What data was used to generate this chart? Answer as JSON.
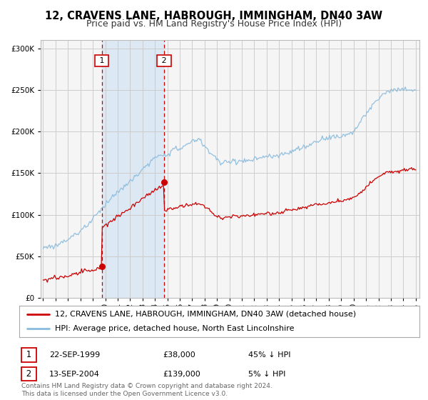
{
  "title": "12, CRAVENS LANE, HABROUGH, IMMINGHAM, DN40 3AW",
  "subtitle": "Price paid vs. HM Land Registry's House Price Index (HPI)",
  "red_label": "12, CRAVENS LANE, HABROUGH, IMMINGHAM, DN40 3AW (detached house)",
  "blue_label": "HPI: Average price, detached house, North East Lincolnshire",
  "transaction1_date": "22-SEP-1999",
  "transaction1_price": "£38,000",
  "transaction1_note": "45% ↓ HPI",
  "transaction1_year": 1999.72,
  "transaction1_value": 38000,
  "transaction2_date": "13-SEP-2004",
  "transaction2_price": "£139,000",
  "transaction2_note": "5% ↓ HPI",
  "transaction2_year": 2004.72,
  "transaction2_value": 139000,
  "footnote": "Contains HM Land Registry data © Crown copyright and database right 2024.\nThis data is licensed under the Open Government Licence v3.0.",
  "ylim": [
    0,
    310000
  ],
  "xlim_start": 1995,
  "xlim_end": 2025,
  "background_color": "#ffffff",
  "plot_bg_color": "#f5f5f5",
  "shaded_region_color": "#dce9f5",
  "red_color": "#cc0000",
  "blue_color": "#88bbdd",
  "grid_color": "#cccccc",
  "title_fontsize": 10.5,
  "subtitle_fontsize": 9,
  "axis_fontsize": 7.5,
  "legend_fontsize": 8,
  "footnote_fontsize": 6.5
}
